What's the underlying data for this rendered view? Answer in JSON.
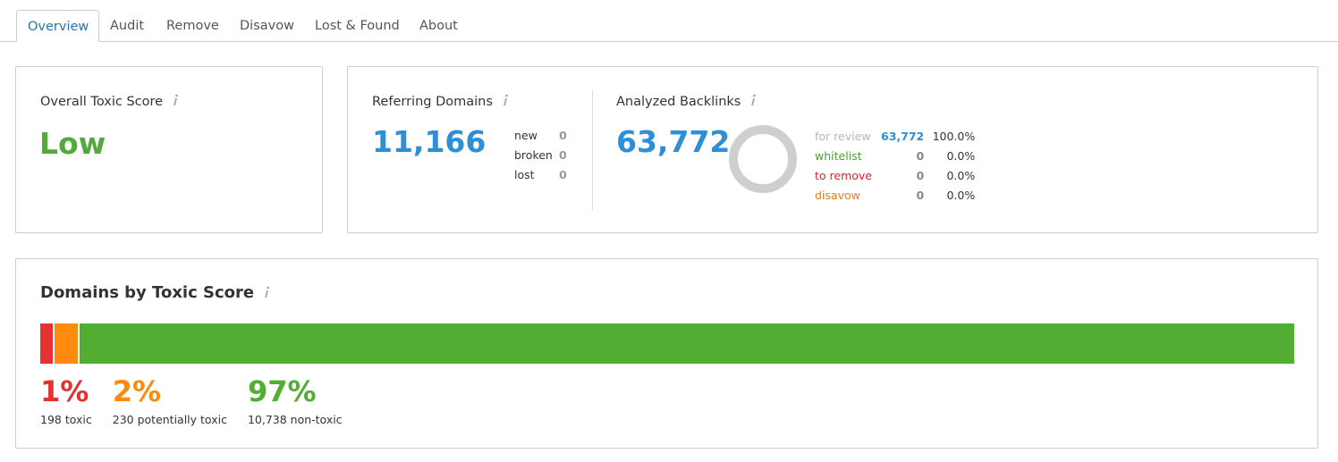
{
  "tabs": [
    "Overview",
    "Audit",
    "Remove",
    "Disavow",
    "Lost & Found",
    "About"
  ],
  "toxic_score": {
    "title": "Overall Toxic Score",
    "value": "Low"
  },
  "referring_domains": {
    "title": "Referring Domains",
    "value": "11,166",
    "rows": [
      [
        "new",
        "0"
      ],
      [
        "broken",
        "0"
      ],
      [
        "lost",
        "0"
      ]
    ]
  },
  "analyzed_backlinks": {
    "title": "Analyzed Backlinks",
    "value": "63,772",
    "rows": [
      {
        "label": "for review",
        "count": "63,772",
        "share": "100.0%",
        "color": "#b5b5b5"
      },
      {
        "label": "whitelist",
        "count": "0",
        "share": "0.0%",
        "color": "#4aa033"
      },
      {
        "label": "to remove",
        "count": "0",
        "share": "0.0%",
        "color": "#d9272e"
      },
      {
        "label": "disavow",
        "count": "0",
        "share": "0.0%",
        "color": "#f47b0f"
      }
    ]
  },
  "domains_by_toxic_score": {
    "title": "Domains by Toxic Score",
    "segments": [
      {
        "value": 1,
        "label": "1%",
        "caption": "198 toxic",
        "color": "#e5312f"
      },
      {
        "value": 2,
        "label": "2%",
        "caption": "230 potentially toxic",
        "color": "#ff8a0e"
      },
      {
        "value": 97,
        "label": "97%",
        "caption": "10,738 non-toxic",
        "color": "#52ae32"
      }
    ]
  }
}
